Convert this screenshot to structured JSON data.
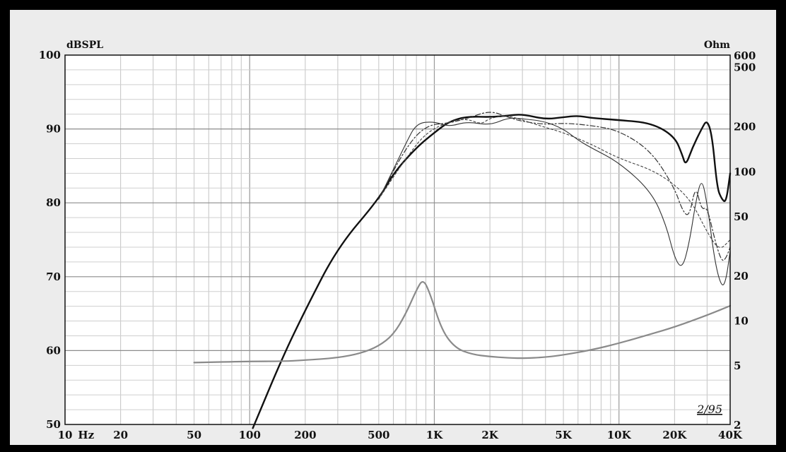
{
  "chart_data": {
    "type": "line",
    "x_scale": "log",
    "x_range": [
      10,
      40000
    ],
    "ylim_left": [
      50,
      100
    ],
    "y2_scale": "log",
    "ylim_right": [
      2,
      600
    ],
    "left_unit": "dBSPL",
    "right_unit": "Ohm",
    "x_ticks": [
      {
        "value": 10,
        "label": "10"
      },
      {
        "value": 13,
        "label": "Hz"
      },
      {
        "value": 20,
        "label": "20"
      },
      {
        "value": 50,
        "label": "50"
      },
      {
        "value": 100,
        "label": "100"
      },
      {
        "value": 200,
        "label": "200"
      },
      {
        "value": 500,
        "label": "500"
      },
      {
        "value": 1000,
        "label": "1K"
      },
      {
        "value": 2000,
        "label": "2K"
      },
      {
        "value": 5000,
        "label": "5K"
      },
      {
        "value": 10000,
        "label": "10K"
      },
      {
        "value": 20000,
        "label": "20K"
      },
      {
        "value": 40000,
        "label": "40K"
      }
    ],
    "y_ticks_left": [
      100,
      90,
      80,
      70,
      60,
      50
    ],
    "y_ticks_right": [
      {
        "value": 600,
        "label": "600"
      },
      {
        "value": 500,
        "label": "500"
      },
      {
        "value": 200,
        "label": "200"
      },
      {
        "value": 100,
        "label": "100"
      },
      {
        "value": 50,
        "label": "50"
      },
      {
        "value": 20,
        "label": "20"
      },
      {
        "value": 10,
        "label": "10"
      },
      {
        "value": 5,
        "label": "5"
      },
      {
        "value": 2,
        "label": "2"
      }
    ],
    "annotation": "2/95",
    "grid": true,
    "series": [
      {
        "axis": "left",
        "style": "solid-thick",
        "color": "#111111",
        "points": [
          [
            104,
            49.5
          ],
          [
            150,
            59
          ],
          [
            200,
            65.5
          ],
          [
            300,
            74
          ],
          [
            500,
            80.5
          ],
          [
            600,
            84
          ],
          [
            800,
            87.5
          ],
          [
            1000,
            89.5
          ],
          [
            1200,
            91
          ],
          [
            1500,
            91.7
          ],
          [
            2000,
            91.6
          ],
          [
            2500,
            91.8
          ],
          [
            3000,
            92
          ],
          [
            4000,
            91.3
          ],
          [
            5000,
            91.6
          ],
          [
            6000,
            91.8
          ],
          [
            7000,
            91.5
          ],
          [
            10000,
            91.2
          ],
          [
            15000,
            90.8
          ],
          [
            20000,
            89
          ],
          [
            22000,
            86.5
          ],
          [
            23000,
            85
          ],
          [
            25000,
            87.5
          ],
          [
            28000,
            90
          ],
          [
            30000,
            91.3
          ],
          [
            32000,
            89
          ],
          [
            34000,
            82
          ],
          [
            36000,
            80.5
          ],
          [
            38000,
            80
          ],
          [
            40000,
            84
          ]
        ]
      },
      {
        "axis": "left",
        "style": "thin",
        "color": "#333333",
        "points": [
          [
            500,
            80.5
          ],
          [
            600,
            84.5
          ],
          [
            700,
            88
          ],
          [
            800,
            90.8
          ],
          [
            1000,
            91
          ],
          [
            1200,
            90.3
          ],
          [
            1500,
            91
          ],
          [
            2000,
            90.5
          ],
          [
            2500,
            91.5
          ],
          [
            3000,
            91.4
          ],
          [
            4000,
            91
          ],
          [
            5000,
            90
          ],
          [
            6000,
            88.5
          ],
          [
            7000,
            87.5
          ],
          [
            10000,
            85.5
          ],
          [
            15000,
            81.5
          ],
          [
            18000,
            77
          ],
          [
            20000,
            72.5
          ],
          [
            22000,
            71
          ],
          [
            24000,
            74.5
          ],
          [
            26000,
            80
          ],
          [
            28000,
            83.5
          ],
          [
            30000,
            80
          ],
          [
            33000,
            72
          ],
          [
            36000,
            68.5
          ],
          [
            38000,
            69.5
          ],
          [
            40000,
            73.5
          ]
        ]
      },
      {
        "axis": "left",
        "style": "dash-dot",
        "color": "#333333",
        "points": [
          [
            500,
            80.5
          ],
          [
            700,
            87.5
          ],
          [
            900,
            90.5
          ],
          [
            1200,
            90.8
          ],
          [
            1500,
            91.4
          ],
          [
            2000,
            92.5
          ],
          [
            2500,
            91.6
          ],
          [
            3000,
            91
          ],
          [
            4000,
            90.6
          ],
          [
            5000,
            90.8
          ],
          [
            7000,
            90.5
          ],
          [
            10000,
            89.8
          ],
          [
            15000,
            87
          ],
          [
            20000,
            82
          ],
          [
            22000,
            79
          ],
          [
            24000,
            78
          ],
          [
            26000,
            82.5
          ],
          [
            28000,
            79
          ],
          [
            30000,
            79.5
          ],
          [
            33000,
            75
          ],
          [
            36000,
            72
          ],
          [
            38000,
            72.5
          ],
          [
            40000,
            74
          ]
        ]
      },
      {
        "axis": "left",
        "style": "dotted",
        "color": "#444444",
        "points": [
          [
            500,
            80.5
          ],
          [
            700,
            86
          ],
          [
            900,
            89.5
          ],
          [
            1200,
            91
          ],
          [
            1500,
            91.4
          ],
          [
            1800,
            90.6
          ],
          [
            2000,
            91.5
          ],
          [
            2500,
            91.8
          ],
          [
            3000,
            91.2
          ],
          [
            4000,
            90.2
          ],
          [
            5000,
            89.5
          ],
          [
            7000,
            88
          ],
          [
            10000,
            86
          ],
          [
            15000,
            84.5
          ],
          [
            20000,
            82.5
          ],
          [
            25000,
            80
          ],
          [
            30000,
            76
          ],
          [
            35000,
            73.5
          ],
          [
            40000,
            75
          ]
        ]
      },
      {
        "axis": "right",
        "style": "gray-impedance",
        "color": "#8a8a8a",
        "points": [
          [
            50,
            5.2
          ],
          [
            100,
            5.3
          ],
          [
            150,
            5.3
          ],
          [
            200,
            5.4
          ],
          [
            300,
            5.6
          ],
          [
            400,
            6.0
          ],
          [
            500,
            6.7
          ],
          [
            600,
            8.0
          ],
          [
            700,
            11
          ],
          [
            800,
            16
          ],
          [
            870,
            19
          ],
          [
            950,
            15
          ],
          [
            1100,
            8.5
          ],
          [
            1300,
            6.5
          ],
          [
            1600,
            5.9
          ],
          [
            2000,
            5.7
          ],
          [
            2500,
            5.6
          ],
          [
            3000,
            5.55
          ],
          [
            4000,
            5.65
          ],
          [
            5000,
            5.85
          ],
          [
            7000,
            6.3
          ],
          [
            10000,
            7.0
          ],
          [
            15000,
            8.1
          ],
          [
            20000,
            9.0
          ],
          [
            30000,
            10.8
          ],
          [
            40000,
            12.5
          ]
        ]
      }
    ]
  }
}
